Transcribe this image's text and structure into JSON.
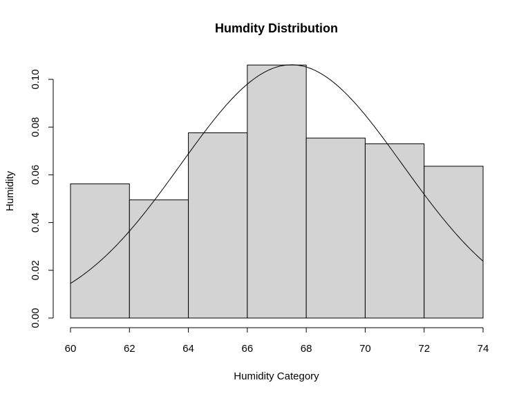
{
  "chart_data": {
    "type": "bar",
    "title": "Humdity Distribution",
    "xlabel": "Humidity Category",
    "ylabel": "Humidity",
    "bins": [
      {
        "x0": 60,
        "x1": 62,
        "value": 0.0562
      },
      {
        "x0": 62,
        "x1": 64,
        "value": 0.0495
      },
      {
        "x0": 64,
        "x1": 66,
        "value": 0.0776
      },
      {
        "x0": 66,
        "x1": 68,
        "value": 0.106
      },
      {
        "x0": 68,
        "x1": 70,
        "value": 0.0754
      },
      {
        "x0": 70,
        "x1": 72,
        "value": 0.073
      },
      {
        "x0": 72,
        "x1": 74,
        "value": 0.0636
      }
    ],
    "density_curve": {
      "type": "normal",
      "mean": 67.5,
      "sd": 3.76,
      "x_range": [
        60,
        74
      ]
    },
    "xlim": [
      60,
      74
    ],
    "ylim": [
      0,
      0.1
    ],
    "xticks": [
      60,
      62,
      64,
      66,
      68,
      70,
      72,
      74
    ],
    "xtick_labels": [
      "60",
      "62",
      "64",
      "66",
      "68",
      "70",
      "72",
      "74"
    ],
    "yticks": [
      0,
      0.02,
      0.04,
      0.06,
      0.08,
      0.1
    ],
    "ytick_labels": [
      "0.00",
      "0.02",
      "0.04",
      "0.06",
      "0.08",
      "0.10"
    ],
    "bar_fill": "#d3d3d3",
    "bar_stroke": "#000000",
    "curve_color": "#000000",
    "grid": false,
    "legend": "none"
  }
}
